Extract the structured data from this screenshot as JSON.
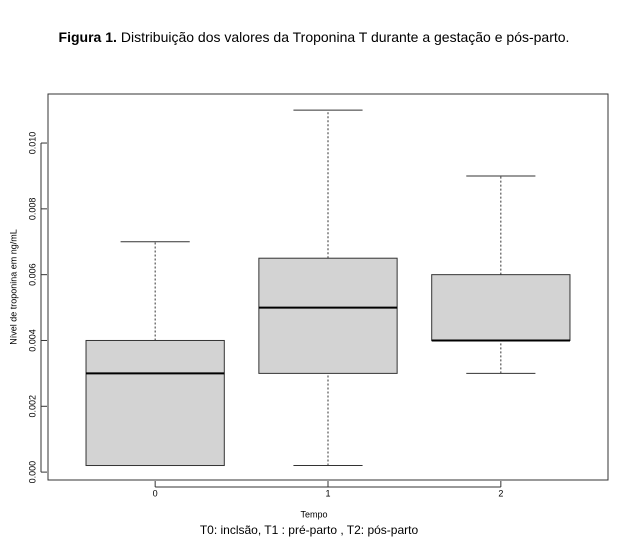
{
  "chart_data": {
    "type": "box",
    "title_label": "Figura 1.",
    "title": "Distribuição dos valores da  Troponina T durante a gestação e pós-parto.",
    "x_label": "Tempo",
    "y_label": "Nível de troponina em ng/mL",
    "caption": "T0: inclsão, T1 : pré-parto , T2: pós-parto",
    "categories": [
      "0",
      "1",
      "2"
    ],
    "min": [
      0.0002,
      0.0002,
      0.003
    ],
    "q1": [
      0.0002,
      0.003,
      0.004
    ],
    "median": [
      0.003,
      0.005,
      0.004
    ],
    "q3": [
      0.004,
      0.0065,
      0.006
    ],
    "max": [
      0.007,
      0.011,
      0.009
    ],
    "color": "#d3d3d3",
    "ylim": [
      -0.00024,
      0.01149
    ],
    "yticks": [
      {
        "value": 0,
        "label": "0.000"
      },
      {
        "value": 0.002,
        "label": "0.002"
      },
      {
        "value": 0.004,
        "label": "0.004"
      },
      {
        "value": 0.006,
        "label": "0.006"
      },
      {
        "value": 0.008,
        "label": "0.008"
      },
      {
        "value": 0.01,
        "label": "0.010"
      }
    ]
  }
}
